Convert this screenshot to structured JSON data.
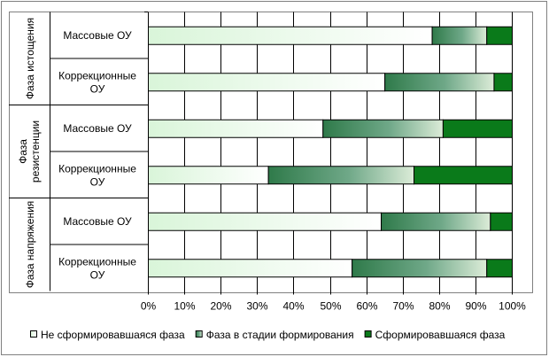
{
  "chart_data": {
    "type": "bar",
    "orientation": "horizontal",
    "stacked": "percent",
    "x_ticks": [
      "0%",
      "10%",
      "20%",
      "30%",
      "40%",
      "50%",
      "60%",
      "70%",
      "80%",
      "90%",
      "100%"
    ],
    "xlim": [
      0,
      100
    ],
    "grid": true,
    "legend_position": "bottom",
    "groups": [
      {
        "label": "Фаза истощения",
        "categories": [
          "Массовые ОУ",
          "Коррекционные ОУ"
        ]
      },
      {
        "label": "Фаза резистенции",
        "categories": [
          "Массовые ОУ",
          "Коррекционные ОУ"
        ]
      },
      {
        "label": "Фаза напряжения",
        "categories": [
          "Массовые ОУ",
          "Коррекционные ОУ"
        ]
      }
    ],
    "series": [
      {
        "name": "Не сформировавшаяся фаза",
        "values": [
          78,
          65,
          48,
          33,
          64,
          56
        ],
        "color": "#e8fbe8"
      },
      {
        "name": "Фаза в стадии формирования",
        "values": [
          15,
          30,
          33,
          40,
          30,
          37
        ],
        "color": "#3f8f5f"
      },
      {
        "name": "Сформировавшаяся фаза",
        "values": [
          7,
          5,
          19,
          27,
          6,
          7
        ],
        "color": "#0a7a1a"
      }
    ]
  }
}
